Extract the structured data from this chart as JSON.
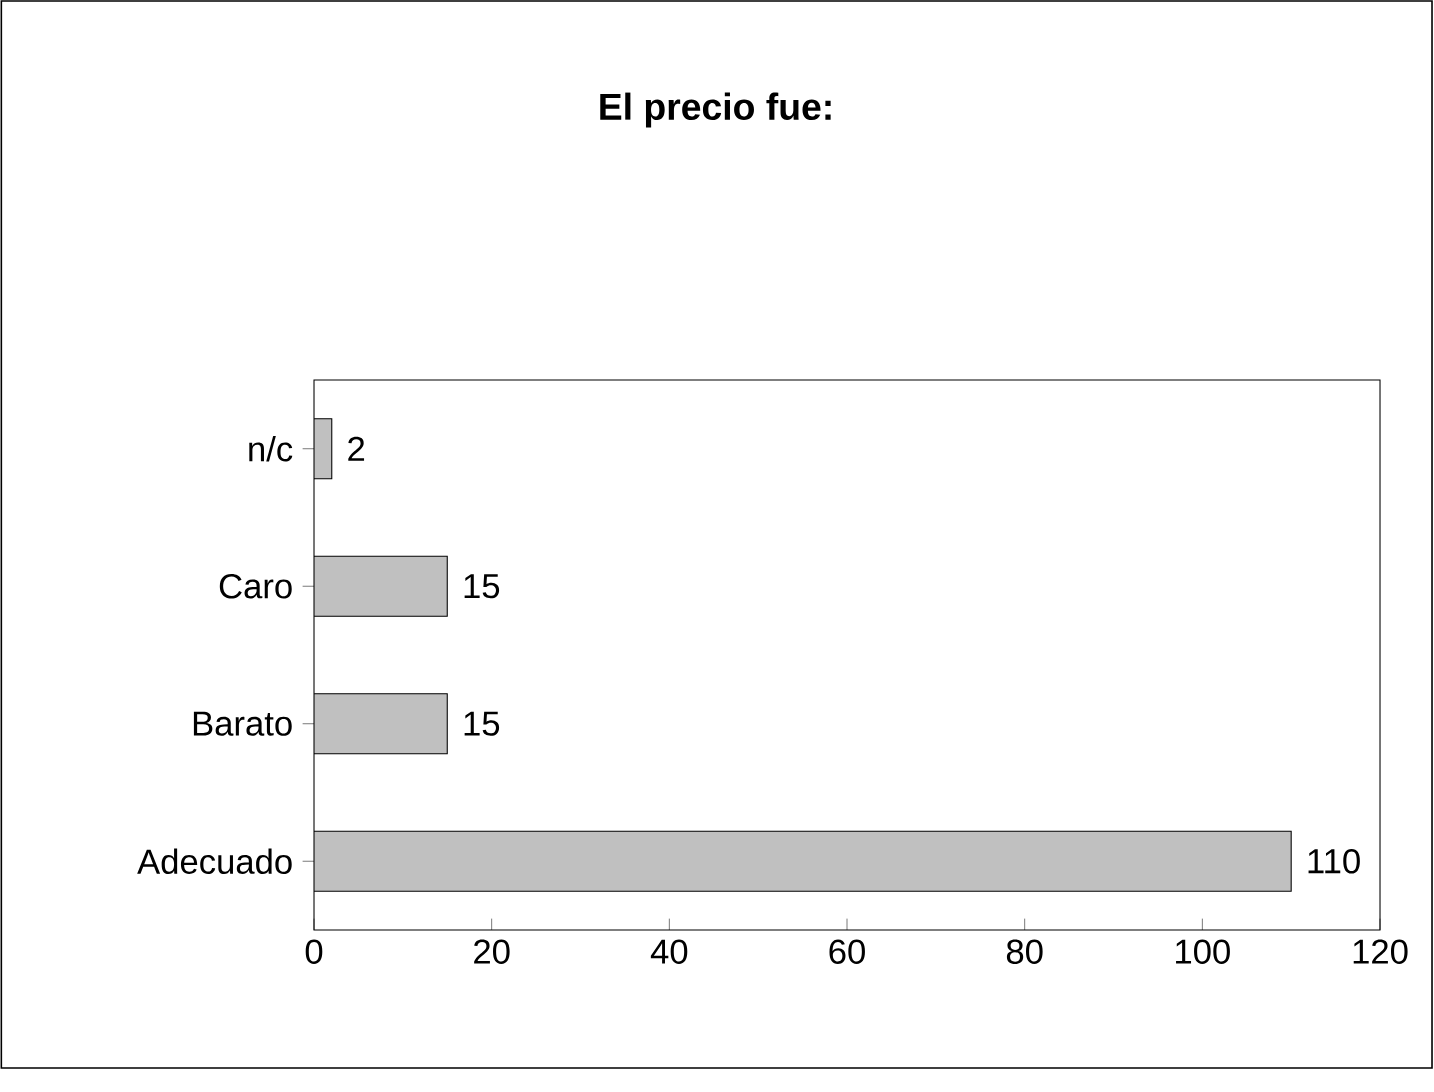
{
  "chart_data": {
    "type": "bar",
    "orientation": "horizontal",
    "title": "El precio fue:",
    "categories": [
      "n/c",
      "Caro",
      "Barato",
      "Adecuado"
    ],
    "values": [
      2,
      15,
      15,
      110
    ],
    "color": "#c0c0c0",
    "data_labels": true,
    "xlim": [
      0,
      120
    ],
    "xticks": [
      0,
      20,
      40,
      60,
      80,
      100,
      120
    ],
    "grid": false
  }
}
